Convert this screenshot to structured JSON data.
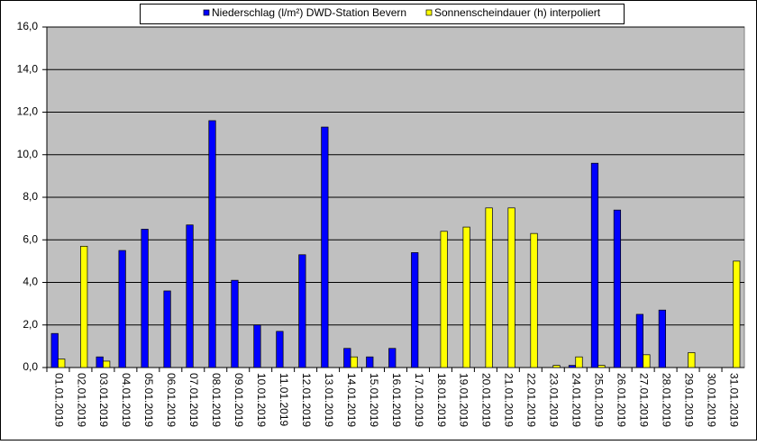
{
  "chart_data": {
    "type": "bar",
    "categories": [
      "01.01.2019",
      "02.01.2019",
      "03.01.2019",
      "04.01.2019",
      "05.01.2019",
      "06.01.2019",
      "07.01.2019",
      "08.01.2019",
      "09.01.2019",
      "10.01.2019",
      "11.01.2019",
      "12.01.2019",
      "13.01.2019",
      "14.01.2019",
      "15.01.2019",
      "16.01.2019",
      "17.01.2019",
      "18.01.2019",
      "19.01.2019",
      "20.01.2019",
      "21.01.2019",
      "22.01.2019",
      "23.01.2019",
      "24.01.2019",
      "25.01.2019",
      "26.01.2019",
      "27.01.2019",
      "28.01.2019",
      "29.01.2019",
      "30.01.2019",
      "31.01.2019"
    ],
    "series": [
      {
        "name": "Niederschlag (l/m²) DWD-Station Bevern",
        "color": "#0000ff",
        "values": [
          1.6,
          0,
          0.5,
          5.5,
          6.5,
          3.6,
          6.7,
          11.6,
          4.1,
          2.0,
          1.7,
          5.3,
          11.3,
          0.9,
          0.5,
          0.9,
          5.4,
          0,
          0,
          0,
          0,
          0,
          0,
          0.1,
          9.6,
          7.4,
          2.5,
          2.7,
          0,
          0,
          0
        ]
      },
      {
        "name": "Sonnenscheindauer (h) interpoliert",
        "color": "#ffff00",
        "values": [
          0.4,
          5.7,
          0.3,
          0,
          0,
          0,
          0,
          0,
          0,
          0,
          0,
          0,
          0,
          0.5,
          0,
          0,
          0,
          6.4,
          6.6,
          7.5,
          7.5,
          6.3,
          0.1,
          0.5,
          0.1,
          0,
          0.6,
          0,
          0.7,
          0,
          5.0
        ]
      }
    ],
    "ylim": [
      0,
      16
    ],
    "yticks": [
      {
        "value": 0,
        "label": "0,0"
      },
      {
        "value": 2,
        "label": "2,0"
      },
      {
        "value": 4,
        "label": "4,0"
      },
      {
        "value": 6,
        "label": "6,0"
      },
      {
        "value": 8,
        "label": "8,0"
      },
      {
        "value": 10,
        "label": "10,0"
      },
      {
        "value": 12,
        "label": "12,0"
      },
      {
        "value": 14,
        "label": "14,0"
      },
      {
        "value": 16,
        "label": "16,0"
      }
    ],
    "grid": true
  }
}
